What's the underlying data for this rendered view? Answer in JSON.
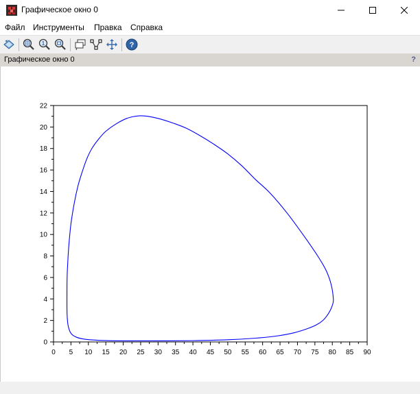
{
  "window": {
    "title": "Графическое окно 0",
    "icon": "scilab-graphics-icon"
  },
  "window_controls": [
    "minimize-icon",
    "maximize-icon",
    "close-icon"
  ],
  "menu": [
    "Файл",
    "Инструменты",
    "Правка",
    "Справка"
  ],
  "toolbar": {
    "buttons": [
      "rotate-icon",
      "zoom-icon",
      "zoom-original-icon",
      "zoom-area-icon",
      "datatip-icon",
      "edit-curves-icon",
      "pan-icon",
      "help-icon"
    ]
  },
  "figure": {
    "title": "Графическое окно 0",
    "help_label": "?"
  },
  "colors": {
    "curve": "#0000ff",
    "figure_bar": "#d9d6d2",
    "toolbar": "#f0f0f0"
  },
  "chart_data": {
    "type": "line",
    "title": "",
    "xlabel": "",
    "ylabel": "",
    "xlim": [
      0,
      90
    ],
    "ylim": [
      0,
      22
    ],
    "xticks": [
      "0",
      "5",
      "10",
      "15",
      "20",
      "25",
      "30",
      "35",
      "40",
      "45",
      "50",
      "55",
      "60",
      "65",
      "70",
      "75",
      "80",
      "85",
      "90"
    ],
    "yticks": [
      "0",
      "2",
      "4",
      "6",
      "8",
      "10",
      "12",
      "14",
      "16",
      "18",
      "20",
      "22"
    ],
    "grid": false,
    "series": [
      {
        "color": "#0000ff",
        "x": [
          80.3,
          79.7,
          78.3,
          76.0,
          72.0,
          67.0,
          62.0,
          58.0,
          54.0,
          50.0,
          46.0,
          42.0,
          38.0,
          34.0,
          30.0,
          27.0,
          25.0,
          23.5,
          21.0,
          18.0,
          15.0,
          13.0,
          11.0,
          9.5,
          8.0,
          7.0,
          6.0,
          5.0,
          4.4,
          4.1,
          3.9,
          3.85,
          3.9,
          4.2,
          5.0,
          6.5,
          9.0,
          13.0,
          20.0,
          30.0,
          40.0,
          50.0,
          58.0,
          64.0,
          69.0,
          73.0,
          75.5,
          77.3,
          78.6,
          79.5,
          80.1,
          80.3
        ],
        "y": [
          4.0,
          5.3,
          6.6,
          7.9,
          9.8,
          12.0,
          13.9,
          15.1,
          16.4,
          17.5,
          18.4,
          19.2,
          19.9,
          20.4,
          20.8,
          21.0,
          21.05,
          21.0,
          20.8,
          20.3,
          19.6,
          18.9,
          18.0,
          17.0,
          15.6,
          14.5,
          13.0,
          11.0,
          9.0,
          7.5,
          6.0,
          4.0,
          2.5,
          1.5,
          0.8,
          0.45,
          0.25,
          0.15,
          0.1,
          0.1,
          0.12,
          0.2,
          0.35,
          0.55,
          0.85,
          1.25,
          1.6,
          2.0,
          2.5,
          3.0,
          3.5,
          4.0
        ]
      }
    ]
  }
}
